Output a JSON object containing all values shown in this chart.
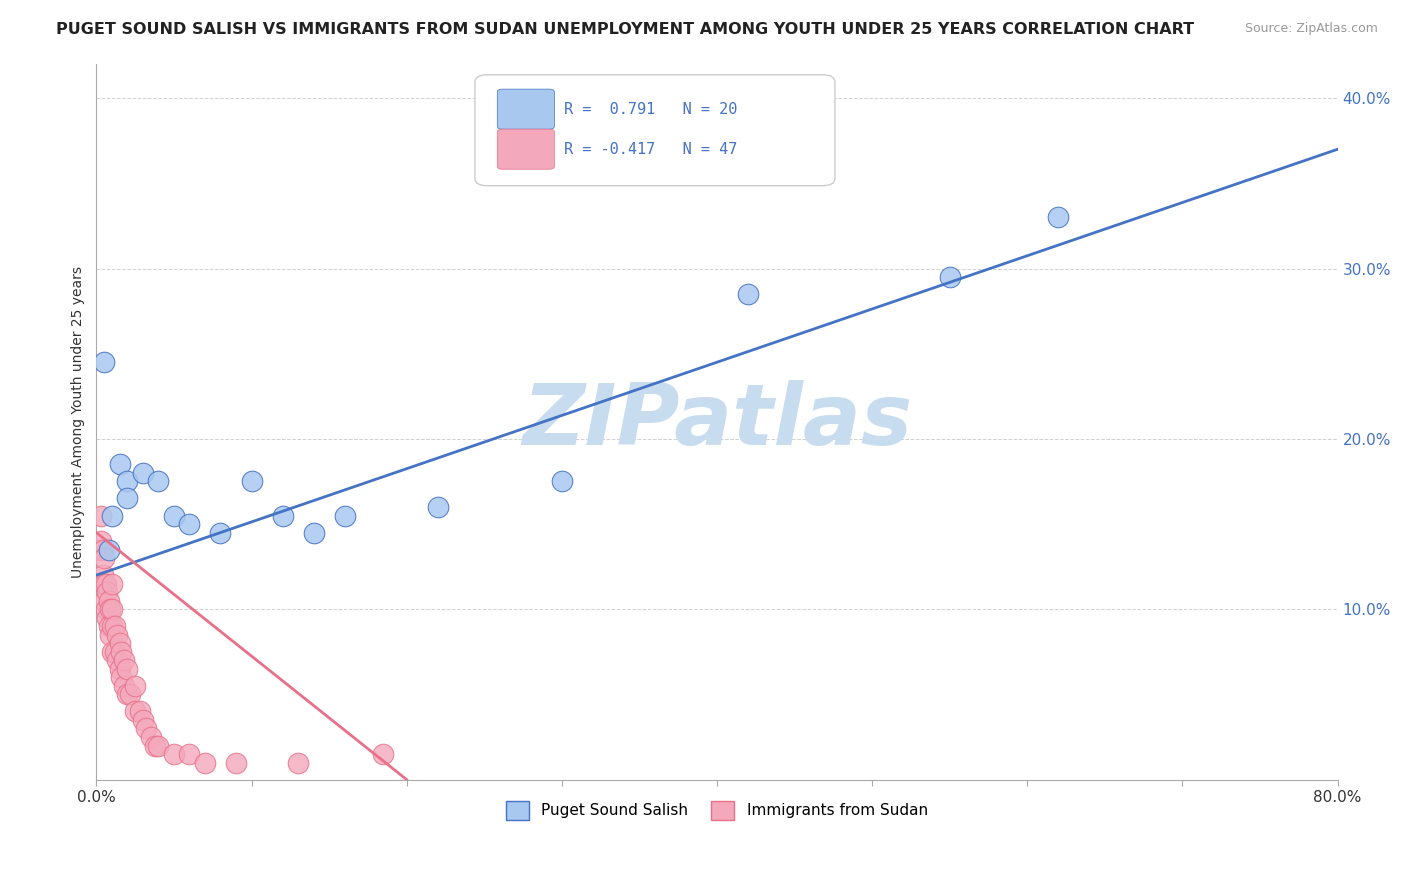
{
  "title": "PUGET SOUND SALISH VS IMMIGRANTS FROM SUDAN UNEMPLOYMENT AMONG YOUTH UNDER 25 YEARS CORRELATION CHART",
  "source": "Source: ZipAtlas.com",
  "ylabel": "Unemployment Among Youth under 25 years",
  "xlim": [
    0.0,
    0.8
  ],
  "ylim": [
    0.0,
    0.42
  ],
  "yticks": [
    0.0,
    0.1,
    0.2,
    0.3,
    0.4
  ],
  "ytick_labels": [
    "",
    "10.0%",
    "20.0%",
    "30.0%",
    "40.0%"
  ],
  "blue_label": "Puget Sound Salish",
  "pink_label": "Immigrants from Sudan",
  "blue_R": 0.791,
  "blue_N": 20,
  "pink_R": -0.417,
  "pink_N": 47,
  "blue_color": "#A8C8F0",
  "pink_color": "#F4A8BC",
  "blue_line_color": "#4472C4",
  "pink_line_color": "#E87088",
  "watermark_color": "#C8DCF0",
  "blue_x": [
    0.005,
    0.008,
    0.01,
    0.015,
    0.02,
    0.02,
    0.03,
    0.04,
    0.05,
    0.06,
    0.08,
    0.1,
    0.12,
    0.14,
    0.16,
    0.22,
    0.3,
    0.42,
    0.55,
    0.62
  ],
  "blue_y": [
    0.245,
    0.135,
    0.155,
    0.185,
    0.175,
    0.165,
    0.18,
    0.175,
    0.155,
    0.15,
    0.145,
    0.175,
    0.155,
    0.145,
    0.155,
    0.16,
    0.175,
    0.285,
    0.295,
    0.33
  ],
  "pink_x": [
    0.002,
    0.003,
    0.003,
    0.004,
    0.004,
    0.005,
    0.005,
    0.005,
    0.006,
    0.006,
    0.007,
    0.007,
    0.008,
    0.008,
    0.009,
    0.009,
    0.01,
    0.01,
    0.01,
    0.01,
    0.012,
    0.012,
    0.013,
    0.013,
    0.015,
    0.015,
    0.016,
    0.016,
    0.018,
    0.018,
    0.02,
    0.02,
    0.022,
    0.025,
    0.025,
    0.028,
    0.03,
    0.032,
    0.035,
    0.038,
    0.04,
    0.05,
    0.06,
    0.07,
    0.09,
    0.13,
    0.185
  ],
  "pink_y": [
    0.135,
    0.14,
    0.155,
    0.12,
    0.135,
    0.105,
    0.115,
    0.13,
    0.1,
    0.115,
    0.095,
    0.11,
    0.09,
    0.105,
    0.085,
    0.1,
    0.075,
    0.09,
    0.1,
    0.115,
    0.075,
    0.09,
    0.07,
    0.085,
    0.065,
    0.08,
    0.06,
    0.075,
    0.055,
    0.07,
    0.05,
    0.065,
    0.05,
    0.04,
    0.055,
    0.04,
    0.035,
    0.03,
    0.025,
    0.02,
    0.02,
    0.015,
    0.015,
    0.01,
    0.01,
    0.01,
    0.015
  ],
  "blue_trend_x0": 0.0,
  "blue_trend_y0": 0.12,
  "blue_trend_x1": 0.8,
  "blue_trend_y1": 0.37,
  "pink_trend_x0": 0.0,
  "pink_trend_y0": 0.145,
  "pink_trend_x1": 0.2,
  "pink_trend_y1": 0.0
}
